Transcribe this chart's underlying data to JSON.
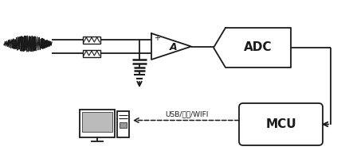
{
  "bg_color": "#ffffff",
  "line_color": "#1a1a1a",
  "adc_label": "ADC",
  "mcu_label": "MCU",
  "comm_label": "USB/蓝牙/WIFI",
  "amp_label": "A",
  "figsize": [
    4.38,
    2.04
  ],
  "dpi": 100
}
